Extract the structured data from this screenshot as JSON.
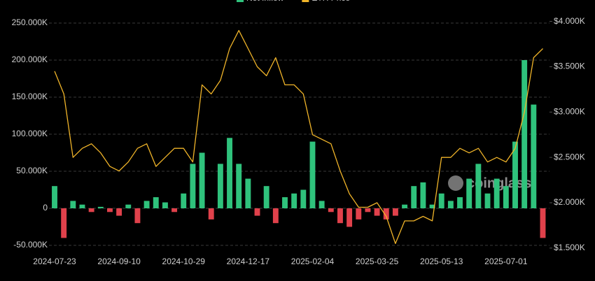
{
  "chart_data": {
    "type": "bar_line",
    "categories": [
      "2024-07-23",
      null,
      null,
      null,
      null,
      null,
      null,
      "2024-09-10",
      null,
      null,
      null,
      null,
      null,
      null,
      "2024-10-29",
      null,
      null,
      null,
      null,
      null,
      null,
      "2024-12-17",
      null,
      null,
      null,
      null,
      null,
      null,
      "2025-02-04",
      null,
      null,
      null,
      null,
      null,
      null,
      "2025-03-25",
      null,
      null,
      null,
      null,
      null,
      null,
      "2025-05-13",
      null,
      null,
      null,
      null,
      null,
      null,
      "2025-07-01",
      null,
      null,
      null,
      null
    ],
    "series": [
      {
        "name": "Net Inflow",
        "type": "bar",
        "color": "#2fc27c",
        "negative_color": "#e0414b",
        "axis": "y",
        "values": [
          30000,
          -40000,
          10000,
          5000,
          -5000,
          2000,
          -5000,
          -10000,
          5000,
          -20000,
          10000,
          15000,
          8000,
          -5000,
          20000,
          60000,
          75000,
          -15000,
          60000,
          95000,
          60000,
          40000,
          -10000,
          30000,
          -20000,
          15000,
          20000,
          25000,
          90000,
          10000,
          -5000,
          -20000,
          -25000,
          -15000,
          -5000,
          -10000,
          -15000,
          -10000,
          5000,
          30000,
          35000,
          5000,
          20000,
          10000,
          15000,
          40000,
          60000,
          20000,
          40000,
          30000,
          90000,
          200000,
          140000,
          -40000
        ]
      },
      {
        "name": "ETH Price",
        "type": "line",
        "color": "#f0b429",
        "axis": "y2",
        "values": [
          3450,
          3200,
          2500,
          2600,
          2650,
          2550,
          2400,
          2350,
          2450,
          2600,
          2650,
          2400,
          2500,
          2600,
          2600,
          2450,
          3300,
          3200,
          3350,
          3700,
          3900,
          3700,
          3500,
          3400,
          3600,
          3300,
          3300,
          3200,
          2750,
          2700,
          2650,
          2350,
          2100,
          1950,
          1950,
          2000,
          1850,
          1550,
          1800,
          1800,
          1850,
          1800,
          2500,
          2500,
          2600,
          2550,
          2600,
          2450,
          2500,
          2450,
          2600,
          3000,
          3600,
          3700
        ]
      }
    ],
    "ylim": [
      -56600,
      254700
    ],
    "yticks": [
      {
        "value": -50000,
        "label": "-50.000K"
      },
      0,
      {
        "value": 50000,
        "label": "50.000K"
      },
      {
        "value": 100000,
        "label": "100.000K"
      },
      {
        "value": 150000,
        "label": "150.000K"
      },
      {
        "value": 200000,
        "label": "200.000K"
      },
      {
        "value": 250000,
        "label": "250.000K"
      }
    ],
    "y2lim": [
      1476,
      4020
    ],
    "y2ticks": [
      {
        "value": 1500,
        "label": "$1.500K"
      },
      {
        "value": 2000,
        "label": "$2.000K"
      },
      {
        "value": 2500,
        "label": "$2.500K"
      },
      {
        "value": 3000,
        "label": "$3.000K"
      },
      {
        "value": 3500,
        "label": "$3.500K"
      },
      {
        "value": 4000,
        "label": "$4.000K"
      }
    ],
    "grid": true,
    "legend": "top",
    "watermark": "coinglass"
  }
}
